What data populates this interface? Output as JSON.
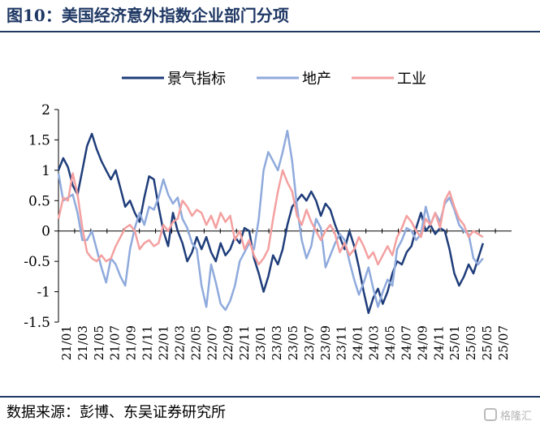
{
  "title": "图10：美国经济意外指数企业部门分项",
  "source": "数据来源：彭博、东吴证券研究所",
  "watermark": "格隆汇",
  "chart_data": {
    "type": "line",
    "yticks": [
      "2",
      "1.5",
      "1",
      "0.5",
      "0",
      "-0.5",
      "-1",
      "-1.5"
    ],
    "ylim": [
      -1.5,
      2
    ],
    "xlim": [
      0,
      57
    ],
    "x_ticks": [
      "21/01",
      "21/03",
      "21/05",
      "21/07",
      "21/09",
      "21/11",
      "22/01",
      "22/03",
      "22/05",
      "22/07",
      "22/09",
      "22/11",
      "23/01",
      "23/03",
      "23/05",
      "23/07",
      "23/09",
      "23/11",
      "24/01",
      "24/03",
      "24/05",
      "24/07",
      "24/09",
      "24/11",
      "25/01",
      "25/03",
      "25/05",
      "25/07"
    ],
    "legend_position": "top",
    "series": [
      {
        "name": "景气指标",
        "color": "#1f3d7a",
        "points": [
          [
            0,
            1.0
          ],
          [
            0.6,
            1.2
          ],
          [
            1.2,
            1.05
          ],
          [
            1.8,
            0.75
          ],
          [
            2.4,
            0.6
          ],
          [
            3,
            1.0
          ],
          [
            3.6,
            1.4
          ],
          [
            4.2,
            1.6
          ],
          [
            4.8,
            1.35
          ],
          [
            5.4,
            1.15
          ],
          [
            6,
            1.0
          ],
          [
            6.6,
            0.85
          ],
          [
            7.2,
            1.0
          ],
          [
            7.8,
            0.7
          ],
          [
            8.4,
            0.4
          ],
          [
            9,
            0.5
          ],
          [
            9.6,
            0.3
          ],
          [
            10.2,
            0.15
          ],
          [
            10.8,
            0.55
          ],
          [
            11.4,
            0.9
          ],
          [
            12,
            0.85
          ],
          [
            12.6,
            0.4
          ],
          [
            13.2,
            0.0
          ],
          [
            13.8,
            -0.25
          ],
          [
            14.4,
            0.3
          ],
          [
            15,
            0.0
          ],
          [
            15.6,
            -0.2
          ],
          [
            16.2,
            -0.5
          ],
          [
            16.8,
            -0.35
          ],
          [
            17.4,
            -0.1
          ],
          [
            18,
            -0.3
          ],
          [
            18.6,
            -0.1
          ],
          [
            19.2,
            -0.35
          ],
          [
            19.8,
            -0.5
          ],
          [
            20.4,
            -0.2
          ],
          [
            21,
            -0.4
          ],
          [
            21.6,
            -0.3
          ],
          [
            22.2,
            -0.1
          ],
          [
            22.8,
            -0.2
          ],
          [
            23.4,
            0.05
          ],
          [
            24,
            0.0
          ],
          [
            24.6,
            -0.45
          ],
          [
            25.2,
            -0.7
          ],
          [
            25.8,
            -1.0
          ],
          [
            26.4,
            -0.75
          ],
          [
            27,
            -0.4
          ],
          [
            27.6,
            -0.55
          ],
          [
            28.2,
            -0.3
          ],
          [
            28.8,
            0.1
          ],
          [
            29.4,
            0.4
          ],
          [
            30,
            0.5
          ],
          [
            30.6,
            0.6
          ],
          [
            31.2,
            0.5
          ],
          [
            31.8,
            0.65
          ],
          [
            32.4,
            0.5
          ],
          [
            33,
            0.25
          ],
          [
            33.6,
            0.45
          ],
          [
            34.2,
            0.35
          ],
          [
            34.8,
            0.1
          ],
          [
            35.4,
            -0.1
          ],
          [
            36,
            -0.3
          ],
          [
            36.6,
            0.0
          ],
          [
            37.2,
            -0.25
          ],
          [
            37.8,
            -0.6
          ],
          [
            38.4,
            -1.0
          ],
          [
            39,
            -1.35
          ],
          [
            39.6,
            -1.1
          ],
          [
            40.2,
            -0.95
          ],
          [
            40.8,
            -1.2
          ],
          [
            41.4,
            -1.0
          ],
          [
            42,
            -0.7
          ],
          [
            42.6,
            -0.5
          ],
          [
            43.2,
            -0.55
          ],
          [
            43.8,
            -0.35
          ],
          [
            44.4,
            -0.25
          ],
          [
            45,
            0.05
          ],
          [
            45.6,
            0.3
          ],
          [
            46.2,
            0.0
          ],
          [
            46.8,
            0.1
          ],
          [
            47.4,
            -0.05
          ],
          [
            48,
            0.05
          ],
          [
            48.6,
            0.0
          ],
          [
            49.2,
            -0.3
          ],
          [
            49.8,
            -0.7
          ],
          [
            50.4,
            -0.9
          ],
          [
            51,
            -0.75
          ],
          [
            51.6,
            -0.55
          ],
          [
            52.2,
            -0.7
          ],
          [
            52.8,
            -0.45
          ],
          [
            53.4,
            -0.2
          ]
        ]
      },
      {
        "name": "地产",
        "color": "#8faadc",
        "points": [
          [
            0,
            0.95
          ],
          [
            0.6,
            0.5
          ],
          [
            1.2,
            0.55
          ],
          [
            1.8,
            0.6
          ],
          [
            2.4,
            0.3
          ],
          [
            3,
            -0.15
          ],
          [
            3.6,
            -0.15
          ],
          [
            4.2,
            0.0
          ],
          [
            4.8,
            -0.3
          ],
          [
            5.4,
            -0.6
          ],
          [
            6,
            -0.85
          ],
          [
            6.6,
            -0.45
          ],
          [
            7.2,
            -0.55
          ],
          [
            7.8,
            -0.75
          ],
          [
            8.4,
            -0.9
          ],
          [
            9,
            -0.3
          ],
          [
            9.6,
            0.05
          ],
          [
            10.2,
            0.3
          ],
          [
            10.8,
            0.1
          ],
          [
            11.4,
            0.4
          ],
          [
            12,
            0.35
          ],
          [
            12.6,
            0.55
          ],
          [
            13.2,
            0.85
          ],
          [
            13.8,
            0.6
          ],
          [
            14.4,
            0.45
          ],
          [
            15,
            0.55
          ],
          [
            15.6,
            0.2
          ],
          [
            16.2,
            0.05
          ],
          [
            16.8,
            -0.2
          ],
          [
            17.4,
            -0.3
          ],
          [
            18,
            -0.9
          ],
          [
            18.6,
            -1.25
          ],
          [
            19.2,
            -0.55
          ],
          [
            19.8,
            -0.85
          ],
          [
            20.4,
            -1.2
          ],
          [
            21,
            -1.3
          ],
          [
            21.6,
            -1.15
          ],
          [
            22.2,
            -0.9
          ],
          [
            22.8,
            -0.5
          ],
          [
            23.4,
            -0.35
          ],
          [
            24,
            -0.2
          ],
          [
            24.6,
            -0.3
          ],
          [
            25.2,
            0.2
          ],
          [
            25.8,
            1.0
          ],
          [
            26.4,
            1.3
          ],
          [
            27,
            1.15
          ],
          [
            27.6,
            1.0
          ],
          [
            28.2,
            1.3
          ],
          [
            28.8,
            1.65
          ],
          [
            29.4,
            1.15
          ],
          [
            30,
            0.4
          ],
          [
            30.6,
            -0.15
          ],
          [
            31.2,
            -0.45
          ],
          [
            31.8,
            -0.25
          ],
          [
            32.4,
            0.2
          ],
          [
            33,
            0.05
          ],
          [
            33.6,
            -0.6
          ],
          [
            34.2,
            -0.4
          ],
          [
            34.8,
            -0.2
          ],
          [
            35.4,
            -0.05
          ],
          [
            36,
            -0.15
          ],
          [
            36.6,
            -0.5
          ],
          [
            37.2,
            -0.8
          ],
          [
            37.8,
            -1.05
          ],
          [
            38.4,
            -0.85
          ],
          [
            39,
            -0.6
          ],
          [
            39.6,
            -0.95
          ],
          [
            40.2,
            -1.25
          ],
          [
            40.8,
            -1.0
          ],
          [
            41.4,
            -0.8
          ],
          [
            42,
            -0.9
          ],
          [
            42.6,
            -0.3
          ],
          [
            43.2,
            -0.15
          ],
          [
            43.8,
            0.05
          ],
          [
            44.4,
            0.0
          ],
          [
            45,
            -0.15
          ],
          [
            45.6,
            -0.05
          ],
          [
            46.2,
            0.4
          ],
          [
            46.8,
            0.1
          ],
          [
            47.4,
            0.3
          ],
          [
            48,
            0.15
          ],
          [
            48.6,
            0.45
          ],
          [
            49.2,
            0.55
          ],
          [
            49.8,
            0.35
          ],
          [
            50.4,
            0.1
          ],
          [
            51,
            0.0
          ],
          [
            51.6,
            -0.05
          ],
          [
            52.2,
            -0.45
          ],
          [
            52.8,
            -0.55
          ],
          [
            53.4,
            -0.45
          ]
        ]
      },
      {
        "name": "工业",
        "color": "#f4a0a0",
        "points": [
          [
            0,
            0.2
          ],
          [
            0.6,
            0.55
          ],
          [
            1.2,
            0.5
          ],
          [
            1.8,
            0.95
          ],
          [
            2.4,
            0.6
          ],
          [
            3,
            0.05
          ],
          [
            3.6,
            -0.35
          ],
          [
            4.2,
            -0.45
          ],
          [
            4.8,
            -0.5
          ],
          [
            5.4,
            -0.4
          ],
          [
            6,
            -0.5
          ],
          [
            6.6,
            -0.45
          ],
          [
            7.2,
            -0.25
          ],
          [
            7.8,
            -0.1
          ],
          [
            8.4,
            0.05
          ],
          [
            9,
            0.1
          ],
          [
            9.6,
            0.0
          ],
          [
            10.2,
            -0.3
          ],
          [
            10.8,
            -0.2
          ],
          [
            11.4,
            -0.15
          ],
          [
            12,
            -0.25
          ],
          [
            12.6,
            -0.2
          ],
          [
            13.2,
            0.1
          ],
          [
            13.8,
            0.0
          ],
          [
            14.4,
            0.15
          ],
          [
            15,
            0.2
          ],
          [
            15.6,
            0.5
          ],
          [
            16.2,
            0.4
          ],
          [
            16.8,
            0.25
          ],
          [
            17.4,
            0.35
          ],
          [
            18,
            0.3
          ],
          [
            18.6,
            0.1
          ],
          [
            19.2,
            0.25
          ],
          [
            19.8,
            0.05
          ],
          [
            20.4,
            0.3
          ],
          [
            21,
            0.15
          ],
          [
            21.6,
            0.25
          ],
          [
            22.2,
            -0.15
          ],
          [
            22.8,
            0.0
          ],
          [
            23.4,
            -0.3
          ],
          [
            24,
            -0.15
          ],
          [
            24.6,
            -0.4
          ],
          [
            25.2,
            -0.55
          ],
          [
            25.8,
            -0.45
          ],
          [
            26.4,
            -0.3
          ],
          [
            27,
            0.2
          ],
          [
            27.6,
            0.65
          ],
          [
            28.2,
            1.0
          ],
          [
            28.8,
            0.8
          ],
          [
            29.4,
            0.65
          ],
          [
            30,
            0.25
          ],
          [
            30.6,
            0.1
          ],
          [
            31.2,
            0.35
          ],
          [
            31.8,
            0.15
          ],
          [
            32.4,
            0.0
          ],
          [
            33,
            -0.15
          ],
          [
            33.6,
            0.0
          ],
          [
            34.2,
            0.1
          ],
          [
            34.8,
            -0.05
          ],
          [
            35.4,
            -0.35
          ],
          [
            36,
            -0.2
          ],
          [
            36.6,
            -0.4
          ],
          [
            37.2,
            -0.3
          ],
          [
            37.8,
            -0.1
          ],
          [
            38.4,
            -0.25
          ],
          [
            39,
            -0.45
          ],
          [
            39.6,
            -0.35
          ],
          [
            40.2,
            -0.55
          ],
          [
            40.8,
            -0.4
          ],
          [
            41.4,
            -0.25
          ],
          [
            42,
            -0.4
          ],
          [
            42.6,
            -0.1
          ],
          [
            43.2,
            0.05
          ],
          [
            43.8,
            0.25
          ],
          [
            44.4,
            0.15
          ],
          [
            45,
            0.0
          ],
          [
            45.6,
            -0.1
          ],
          [
            46.2,
            0.2
          ],
          [
            46.8,
            0.1
          ],
          [
            47.4,
            0.3
          ],
          [
            48,
            0.05
          ],
          [
            48.6,
            0.5
          ],
          [
            49.2,
            0.65
          ],
          [
            49.8,
            0.4
          ],
          [
            50.4,
            0.2
          ],
          [
            51,
            0.1
          ],
          [
            51.6,
            -0.1
          ],
          [
            52.2,
            0.0
          ],
          [
            52.8,
            -0.05
          ],
          [
            53.4,
            -0.1
          ]
        ]
      }
    ]
  }
}
